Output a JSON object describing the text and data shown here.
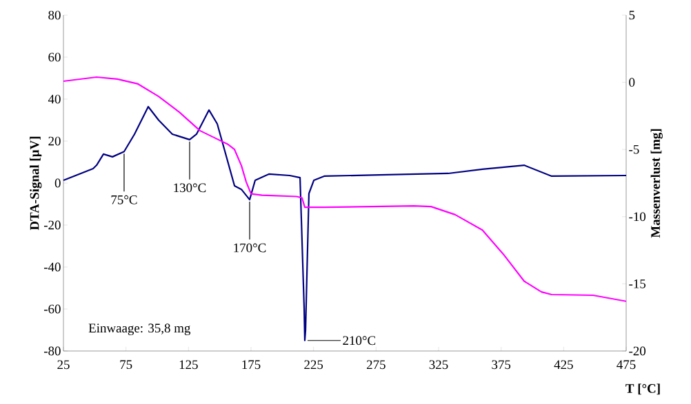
{
  "chart_data": {
    "type": "line",
    "xlabel": "T [°C]",
    "ylabel": "DTA-Signal [µV]",
    "y2label": "Massenverlust [mg]",
    "xlim": [
      25,
      475
    ],
    "xticks": [
      25,
      75,
      125,
      175,
      225,
      275,
      325,
      375,
      425,
      475
    ],
    "ylim": [
      -80,
      80
    ],
    "yticks": [
      -80,
      -60,
      -40,
      -20,
      0,
      20,
      40,
      60,
      80
    ],
    "y2lim": [
      -20,
      5
    ],
    "y2ticks": [
      -20,
      -15,
      -10,
      -5,
      0,
      5
    ],
    "grid": false,
    "marker": "none",
    "line_style": "solid",
    "series": [
      {
        "color": "#000080",
        "x": [
          25,
          48.7,
          51.5,
          57,
          64.2,
          73.5,
          81.8,
          92.8,
          101.1,
          112.1,
          125.9,
          131.4,
          141.4,
          148,
          161.8,
          167.3,
          173.9,
          178.3,
          189.3,
          205.9,
          214.2,
          217.5,
          218,
          218.6,
          221.3,
          225.2,
          233.5,
          277.6,
          332.7,
          360,
          393.4,
          415.4,
          475
        ],
        "values": [
          1.3,
          6.9,
          8.5,
          13.8,
          12.5,
          15,
          23.3,
          36.4,
          30,
          23.3,
          20.7,
          23.3,
          34.8,
          28.2,
          -1.3,
          -3,
          -7.9,
          1.3,
          4.3,
          3.6,
          2.6,
          -60,
          -75,
          -70,
          -5,
          1.3,
          3.3,
          3.9,
          4.6,
          6.6,
          8.5,
          3.3,
          3.6
        ]
      },
      {
        "color": "#ff00ff",
        "axis": "y2",
        "x": [
          25,
          51.5,
          68,
          84.6,
          101.1,
          117.6,
          134.2,
          145.2,
          156.3,
          161.8,
          167.3,
          171.1,
          175,
          183.8,
          211.4,
          215.8,
          218,
          233.5,
          305.2,
          318.9,
          338.2,
          360,
          376.8,
          393.4,
          407.2,
          415.4,
          448.5,
          475
        ],
        "values": [
          0.08,
          0.39,
          0.24,
          -0.12,
          -1.05,
          -2.22,
          -3.6,
          -4.1,
          -4.6,
          -5.0,
          -6.2,
          -7.4,
          -8.3,
          -8.4,
          -8.5,
          -8.6,
          -9.3,
          -9.3,
          -9.2,
          -9.25,
          -9.85,
          -11.0,
          -12.8,
          -14.8,
          -15.6,
          -15.8,
          -15.85,
          -16.3
        ]
      }
    ],
    "annotations": [
      {
        "text": "75°C",
        "x": 73.5,
        "y": 15
      },
      {
        "text": "130°C",
        "x": 125.9,
        "y": 20.7
      },
      {
        "text": "170°C",
        "x": 173.9,
        "y": -7.9
      },
      {
        "text": "210°C",
        "x": 218,
        "y": -75
      },
      "Einwaage: 35,8 mg"
    ]
  }
}
